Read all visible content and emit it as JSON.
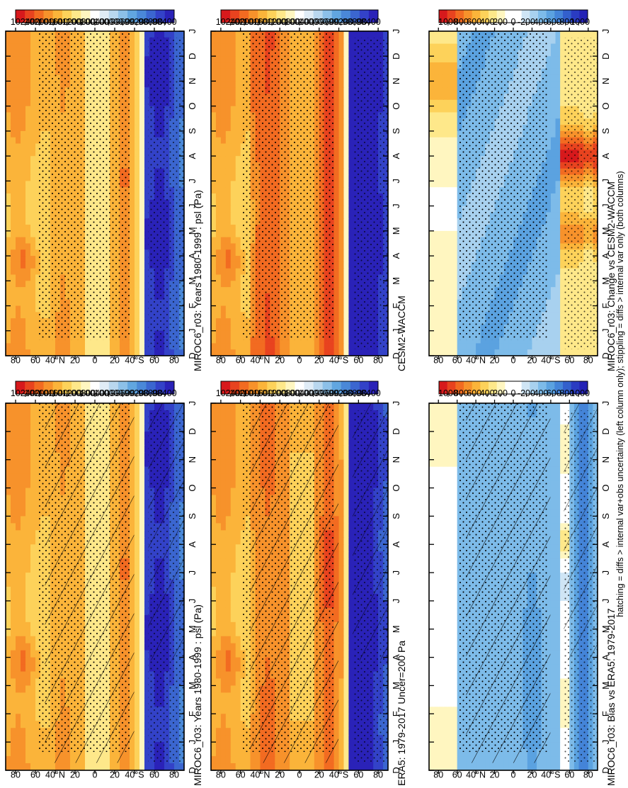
{
  "footnote": "hatching = diffs > internal var+obs uncertainty (left column only); stippling = diffs > internal var only (both columns)",
  "axes": {
    "month_ticks": [
      "D",
      "J",
      "F",
      "M",
      "A",
      "M",
      "J",
      "J",
      "A",
      "S",
      "O",
      "N",
      "D",
      "J"
    ],
    "lat_ticks": [
      "80",
      "60",
      "40°N",
      "20",
      "0",
      "20",
      "40°S",
      "60",
      "80"
    ]
  },
  "colorbars": {
    "psl_levels": [
      "102400",
      "102000",
      "101600",
      "101200",
      "100800",
      "100400",
      "100000",
      "99600",
      "99200",
      "98800",
      "98400"
    ],
    "diff_levels": [
      "1000",
      "800",
      "600",
      "400",
      "200",
      "0",
      "-200",
      "-400",
      "-600",
      "-800",
      "-1000"
    ]
  },
  "colors": {
    "psl_palette": [
      "#d7191c",
      "#e8431f",
      "#f26b21",
      "#f7922b",
      "#fbb43a",
      "#fdd25a",
      "#fee88a",
      "#fff6c0",
      "#ffffff",
      "#e0ecf6",
      "#b9d7ee",
      "#8cc0e8",
      "#61a6e0",
      "#4a88d8",
      "#3b66d0",
      "#3342c8",
      "#2a22b8"
    ],
    "diff_palette": [
      "#d7191c",
      "#e8431f",
      "#f26b21",
      "#f7922b",
      "#fbb43a",
      "#fdd25a",
      "#fee88a",
      "#fff6c0",
      "#ffffff",
      "#ffffff",
      "#cfe5f5",
      "#a8d1ef",
      "#7dbbe9",
      "#5ba2e0",
      "#4484d8",
      "#3360cc",
      "#2a3cc2",
      "#2422b6"
    ]
  },
  "panels": [
    {
      "id": "p1",
      "title": "MIROC6_r03: Years 1980-1999 : psl (Pa)",
      "kind": "psl",
      "hatch": true
    },
    {
      "id": "p2",
      "title": "ERA5: 1979-2017 Uncer=200 Pa",
      "kind": "era5",
      "hatch": true
    },
    {
      "id": "p3",
      "title": "MIROC6_r03: Bias vs ERA5: 1979-2017",
      "kind": "bias",
      "hatch": true
    },
    {
      "id": "p4",
      "title": "MIROC6_r03: Years 1980-1999 : psl (Pa)",
      "kind": "psl",
      "hatch": false
    },
    {
      "id": "p5",
      "title": "CESM2-WACCM",
      "kind": "cesm",
      "hatch": false
    },
    {
      "id": "p6",
      "title": "MIROC6_r03: Change vs CESM2-WACCM",
      "kind": "change",
      "hatch": false
    }
  ],
  "chart_data": [
    {
      "type": "heatmap",
      "title": "MIROC6_r03: Years 1980-1999 : psl (Pa)",
      "x": "months D–J",
      "y": "latitude 90S–90N",
      "z_range": [
        98400,
        102400
      ],
      "units": "Pa"
    },
    {
      "type": "heatmap",
      "title": "ERA5: 1979-2017 Uncer=200 Pa",
      "x": "months D–J",
      "y": "latitude 90S–90N",
      "z_range": [
        98400,
        102400
      ],
      "units": "Pa"
    },
    {
      "type": "heatmap",
      "title": "MIROC6_r03: Bias vs ERA5: 1979-2017",
      "x": "months D–J",
      "y": "latitude 90S–90N",
      "z_range": [
        -1000,
        1000
      ],
      "units": "Pa"
    },
    {
      "type": "heatmap",
      "title": "MIROC6_r03: Years 1980-1999 : psl (Pa)",
      "x": "months D–J",
      "y": "latitude 90S–90N",
      "z_range": [
        98400,
        102400
      ],
      "units": "Pa"
    },
    {
      "type": "heatmap",
      "title": "CESM2-WACCM",
      "x": "months D–J",
      "y": "latitude 90S–90N",
      "z_range": [
        98400,
        102400
      ],
      "units": "Pa"
    },
    {
      "type": "heatmap",
      "title": "MIROC6_r03: Change vs CESM2-WACCM",
      "x": "months D–J",
      "y": "latitude 90S–90N",
      "z_range": [
        -1000,
        1000
      ],
      "units": "Pa"
    }
  ]
}
